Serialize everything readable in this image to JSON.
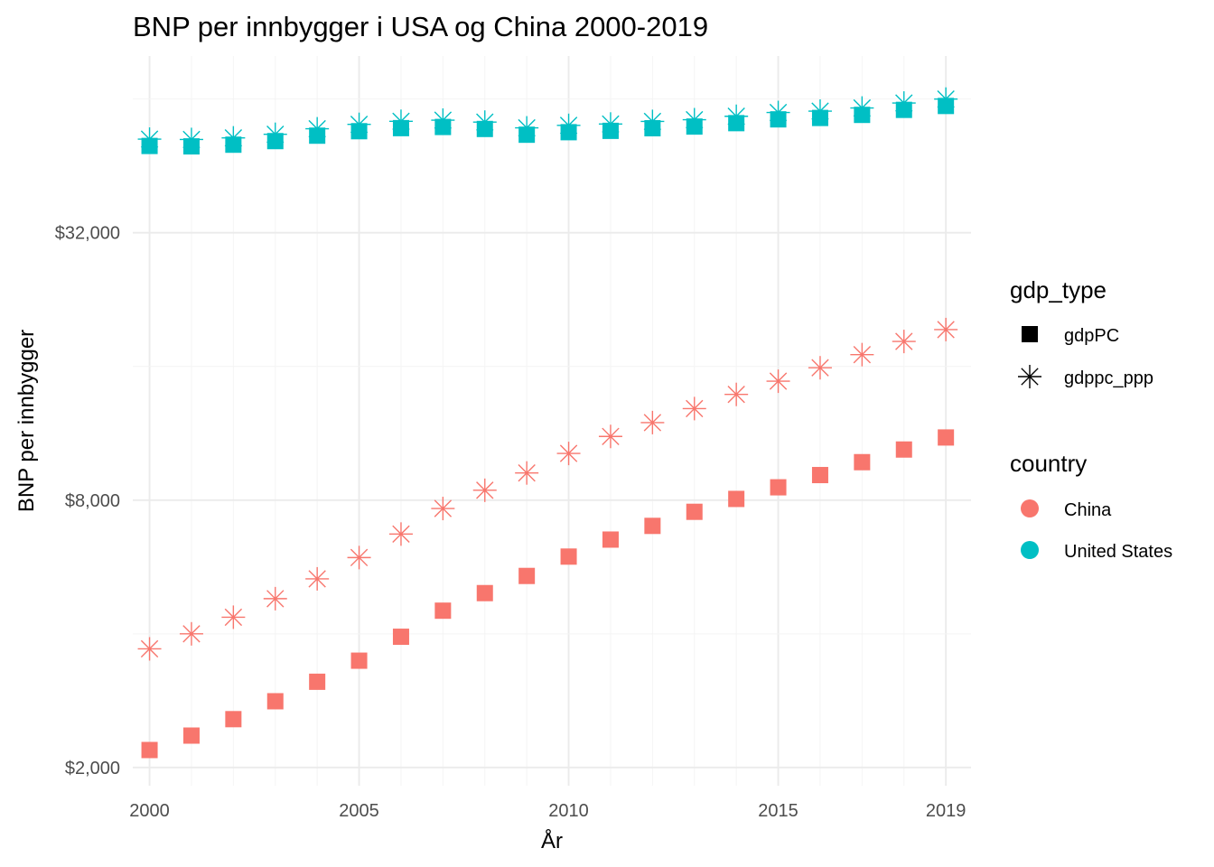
{
  "chart_data": {
    "type": "scatter",
    "title": "BNP per innbygger i USA og China 2000-2019",
    "xlabel": "År",
    "ylabel": "BNP per innbygger",
    "y_scale": "log",
    "xlim": [
      1999.6,
      2019.6
    ],
    "ylim": [
      1820,
      80000
    ],
    "x_ticks": [
      2000,
      2005,
      2010,
      2015,
      2019
    ],
    "x_tick_labels": [
      "2000",
      "2005",
      "2010",
      "2015",
      "2019"
    ],
    "y_ticks": [
      2000,
      8000,
      32000
    ],
    "y_tick_labels": [
      "$2,000",
      "$8,000",
      "$32,000"
    ],
    "grid": true,
    "legend_position": "right",
    "legends": [
      {
        "title": "gdp_type",
        "items": [
          {
            "label": "gdpPC",
            "shape": "square"
          },
          {
            "label": "gdppc_ppp",
            "shape": "asterisk"
          }
        ]
      },
      {
        "title": "country",
        "items": [
          {
            "label": "China",
            "color": "#F8766D"
          },
          {
            "label": "United States",
            "color": "#00BFC4"
          }
        ]
      }
    ],
    "x": [
      2000,
      2001,
      2002,
      2003,
      2004,
      2005,
      2006,
      2007,
      2008,
      2009,
      2010,
      2011,
      2012,
      2013,
      2014,
      2015,
      2016,
      2017,
      2018,
      2019
    ],
    "series": [
      {
        "name": "China",
        "gdp_type": "gdppc",
        "color": "#F8766D",
        "shape": "square",
        "values": [
          2190,
          2360,
          2570,
          2820,
          3120,
          3480,
          3940,
          4510,
          4940,
          5400,
          5970,
          6520,
          7000,
          7530,
          8050,
          8550,
          9110,
          9740,
          10400,
          11070
        ]
      },
      {
        "name": "China",
        "gdp_type": "gdppc_ppp",
        "color": "#F8766D",
        "shape": "asterisk",
        "values": [
          3700,
          4000,
          4360,
          4800,
          5320,
          5940,
          6710,
          7660,
          8420,
          9210,
          10190,
          11130,
          11960,
          12860,
          13840,
          14820,
          15890,
          17010,
          18210,
          19370
        ]
      },
      {
        "name": "United States",
        "gdp_type": "gdppc",
        "color": "#00BFC4",
        "shape": "square",
        "values": [
          50180,
          50070,
          50510,
          51460,
          52930,
          54170,
          55040,
          55370,
          54800,
          53190,
          53890,
          54270,
          55010,
          55490,
          56480,
          57600,
          58020,
          58950,
          60500,
          61740
        ]
      },
      {
        "name": "United States",
        "gdp_type": "gdppc_ppp",
        "color": "#00BFC4",
        "shape": "asterisk",
        "values": [
          51990,
          51900,
          52330,
          53310,
          54850,
          56130,
          57030,
          57370,
          56780,
          55120,
          55840,
          56230,
          57000,
          57500,
          58530,
          59690,
          60120,
          61090,
          62690,
          63980
        ]
      }
    ]
  }
}
